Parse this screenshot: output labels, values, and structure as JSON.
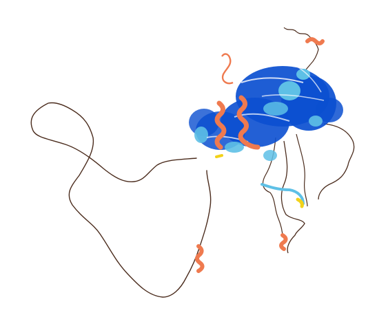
{
  "scene": {
    "subject": "protein-structure-cartoon",
    "background": "#ffffff",
    "palette": {
      "very_high": "#0b4fd0",
      "high": "#5ec0e6",
      "low": "#f2d21a",
      "very_low": "#ef7a4f",
      "coil": "#4a2b1c"
    }
  }
}
